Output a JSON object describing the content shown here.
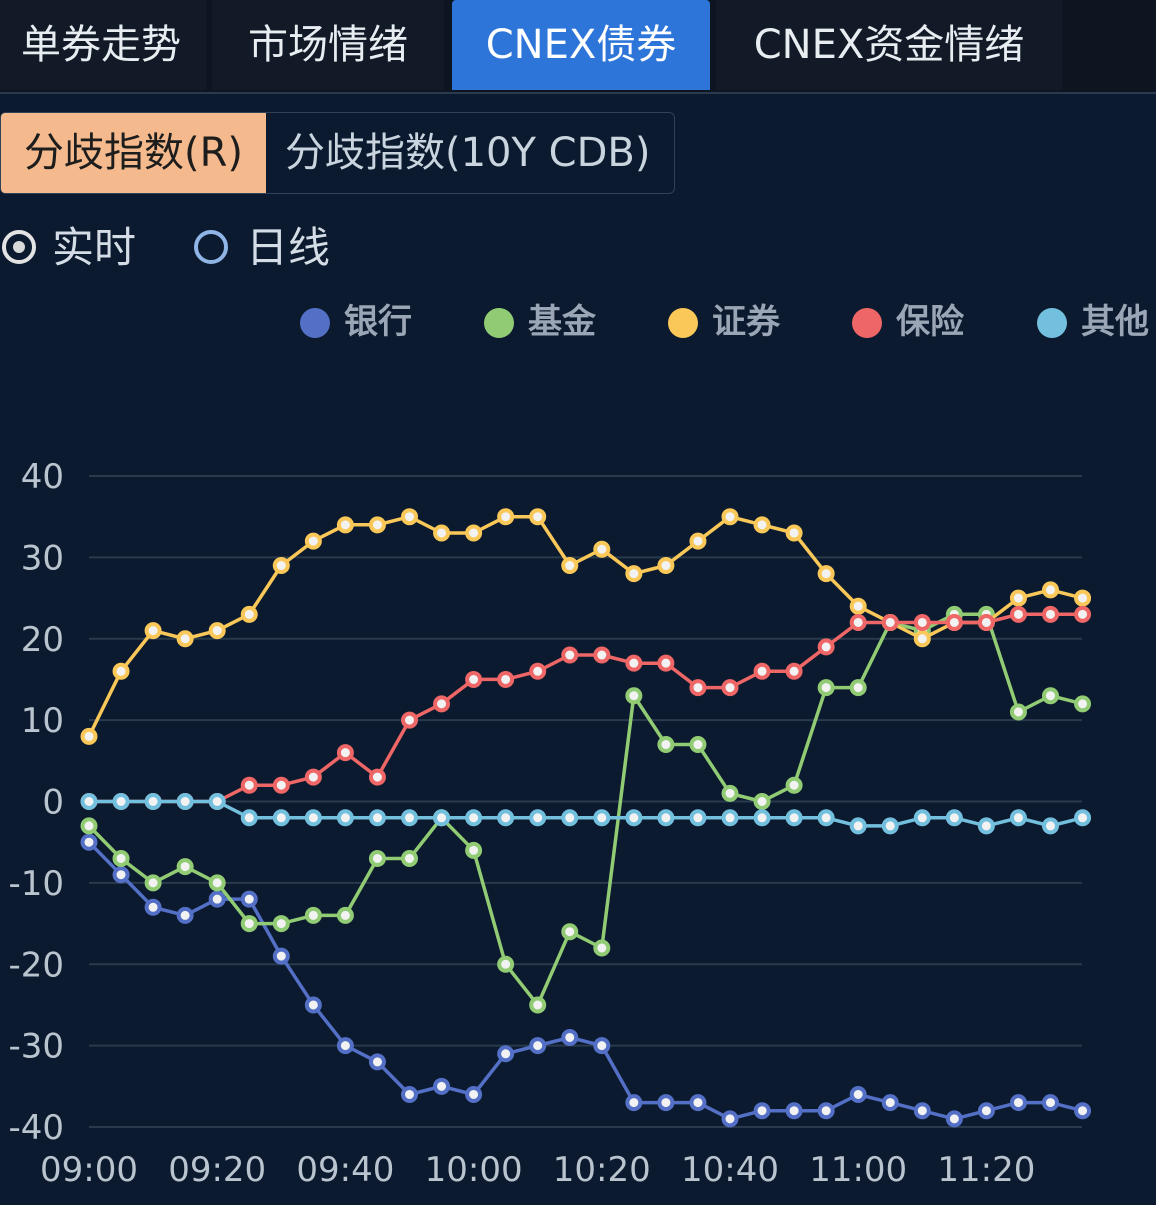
{
  "tabs": [
    {
      "label": "单券走势",
      "active": false
    },
    {
      "label": "市场情绪",
      "active": false
    },
    {
      "label": "CNEX债券",
      "active": true
    },
    {
      "label": "CNEX资金情绪",
      "active": false
    }
  ],
  "subtabs": [
    {
      "label": "分歧指数(R)",
      "active": true
    },
    {
      "label": "分歧指数(10Y CDB)",
      "active": false
    }
  ],
  "radios": [
    {
      "label": "实时",
      "checked": true
    },
    {
      "label": "日线",
      "checked": false
    }
  ],
  "colors": {
    "background": "#0b1a2e",
    "tab_active": "#2e75d9",
    "subtab_active": "#f4b98c",
    "gridline": "#2a3a4d"
  },
  "chart_data": {
    "type": "line",
    "x": [
      "09:00",
      "09:05",
      "09:10",
      "09:15",
      "09:20",
      "09:25",
      "09:30",
      "09:35",
      "09:40",
      "09:45",
      "09:50",
      "09:55",
      "10:00",
      "10:05",
      "10:10",
      "10:15",
      "10:20",
      "10:25",
      "10:30",
      "10:35",
      "10:40",
      "10:45",
      "10:50",
      "10:55",
      "11:00",
      "11:05",
      "11:10",
      "11:15",
      "11:20",
      "11:25",
      "11:30",
      "11:35"
    ],
    "x_ticks": [
      "09:00",
      "09:20",
      "09:40",
      "10:00",
      "10:20",
      "10:40",
      "11:00",
      "11:20"
    ],
    "y_ticks": [
      40,
      30,
      20,
      10,
      0,
      -10,
      -20,
      -30,
      -40
    ],
    "ylim": [
      -40,
      40
    ],
    "grid": true,
    "legend_position": "top-right",
    "series": [
      {
        "name": "银行",
        "color": "#5470c6",
        "values": [
          -5,
          -9,
          -13,
          -14,
          -12,
          -12,
          -19,
          -25,
          -30,
          -32,
          -36,
          -35,
          -36,
          -31,
          -30,
          -29,
          -30,
          -37,
          -37,
          -37,
          -39,
          -38,
          -38,
          -38,
          -36,
          -37,
          -38,
          -39,
          -38,
          -37,
          -37,
          -38
        ]
      },
      {
        "name": "基金",
        "color": "#91cc75",
        "values": [
          -3,
          -7,
          -10,
          -8,
          -10,
          -15,
          -15,
          -14,
          -14,
          -7,
          -7,
          -2,
          -6,
          -20,
          -25,
          -16,
          -18,
          13,
          7,
          7,
          1,
          0,
          2,
          14,
          14,
          22,
          21,
          23,
          23,
          11,
          13,
          12
        ]
      },
      {
        "name": "证券",
        "color": "#fac858",
        "values": [
          8,
          16,
          21,
          20,
          21,
          23,
          29,
          32,
          34,
          34,
          35,
          33,
          33,
          35,
          35,
          29,
          31,
          28,
          29,
          32,
          35,
          34,
          33,
          28,
          24,
          22,
          20,
          22,
          22,
          25,
          26,
          25
        ]
      },
      {
        "name": "保险",
        "color": "#ee6666",
        "values": [
          0,
          0,
          0,
          0,
          0,
          2,
          2,
          3,
          6,
          3,
          10,
          12,
          15,
          15,
          16,
          18,
          18,
          17,
          17,
          14,
          14,
          16,
          16,
          19,
          22,
          22,
          22,
          22,
          22,
          23,
          23,
          23
        ]
      },
      {
        "name": "其他",
        "color": "#73c0de",
        "values": [
          0,
          0,
          0,
          0,
          0,
          -2,
          -2,
          -2,
          -2,
          -2,
          -2,
          -2,
          -2,
          -2,
          -2,
          -2,
          -2,
          -2,
          -2,
          -2,
          -2,
          -2,
          -2,
          -2,
          -3,
          -3,
          -2,
          -2,
          -3,
          -2,
          -3,
          -2
        ]
      }
    ]
  }
}
